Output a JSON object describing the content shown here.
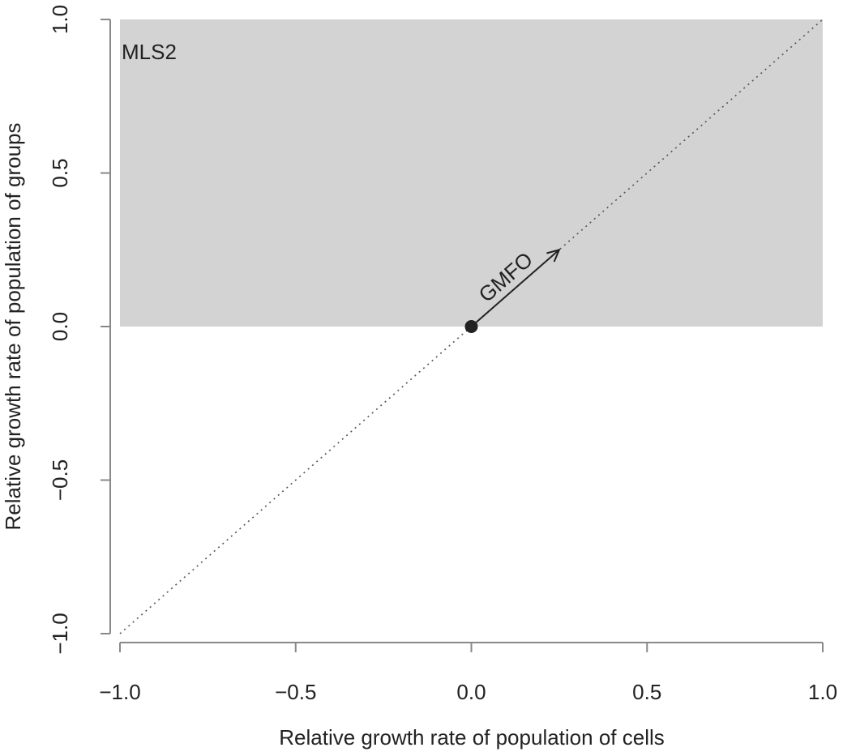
{
  "chart_data": {
    "type": "scatter",
    "x_label": "Relative growth rate of population of cells",
    "y_label": "Relative growth rate of population of groups",
    "xlim": [
      -1,
      1
    ],
    "ylim": [
      -1,
      1
    ],
    "xticks": [
      {
        "value": -1,
        "label": "−1.0"
      },
      {
        "value": -0.5,
        "label": "−0.5"
      },
      {
        "value": 0,
        "label": "0.0"
      },
      {
        "value": 0.5,
        "label": "0.5"
      },
      {
        "value": 1,
        "label": "1.0"
      }
    ],
    "yticks": [
      {
        "value": -1,
        "label": "−1.0"
      },
      {
        "value": -0.5,
        "label": "−0.5"
      },
      {
        "value": 0,
        "label": "0.0"
      },
      {
        "value": 0.5,
        "label": "0.5"
      },
      {
        "value": 1,
        "label": "1.0"
      }
    ],
    "series": [
      {
        "x": [
          0
        ],
        "y": [
          0
        ],
        "color": "#222222"
      }
    ],
    "regions": [
      {
        "label": "MLS2",
        "xlim": [
          -1,
          1
        ],
        "ylim": [
          0,
          1
        ],
        "color": "#d3d3d3"
      }
    ],
    "reference_line": {
      "x": [
        -1,
        1
      ],
      "y": [
        -1,
        1
      ],
      "style": "dotted",
      "color": "#555555"
    },
    "arrows": [
      {
        "label": "GMFO",
        "from": [
          0,
          0
        ],
        "to": [
          0.25,
          0.25
        ],
        "color": "#222222"
      }
    ]
  }
}
